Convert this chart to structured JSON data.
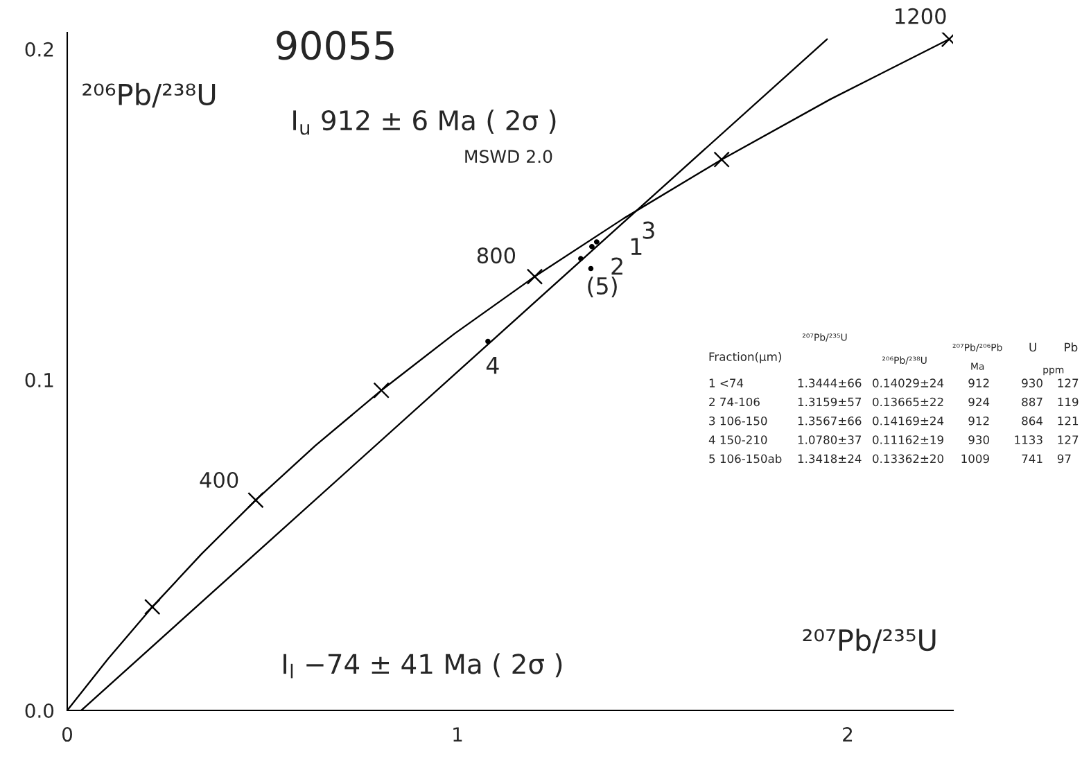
{
  "chart_data": [
    {
      "type": "line",
      "title": "90055",
      "xlabel": "²⁰⁷Pb/²³⁵U",
      "ylabel": "²⁰⁶Pb/²³⁸U",
      "xlim": [
        0,
        2.27
      ],
      "ylim": [
        0,
        0.205
      ],
      "xticks": [
        0,
        1,
        2
      ],
      "yticks": [
        {
          "value": 0,
          "label": "0.0"
        },
        0.1,
        0.2
      ],
      "series": [
        {
          "type": "line",
          "color": "#000000",
          "x": [
            0,
            0.104,
            0.218,
            0.344,
            0.483,
            0.636,
            0.805,
            0.992,
            1.198,
            1.426,
            1.677,
            1.955,
            2.26
          ],
          "values": [
            0,
            0.0155,
            0.0313,
            0.0473,
            0.0636,
            0.0801,
            0.0968,
            0.1139,
            0.1312,
            0.1488,
            0.1666,
            0.1848,
            0.203
          ]
        },
        {
          "type": "scatter",
          "color": "#000000",
          "marker": "cross",
          "x": [
            0.218,
            0.483,
            0.805,
            1.198,
            1.677,
            2.26
          ],
          "values": [
            0.0313,
            0.0636,
            0.0968,
            0.1312,
            0.1666,
            0.203
          ]
        },
        {
          "type": "line",
          "color": "#000000",
          "x": [
            0.036,
            1.947
          ],
          "values": [
            0,
            0.203
          ]
        },
        {
          "type": "scatter",
          "color": "#000000",
          "marker": "circle",
          "x": [
            1.3444,
            1.3159,
            1.3567,
            1.078,
            1.3418
          ],
          "values": [
            0.14029,
            0.13665,
            0.14169,
            0.11162,
            0.13362
          ],
          "xerrors": [
            0.0066,
            0.0057,
            0.0066,
            0.0037,
            0.0024
          ],
          "errors": [
            0.00024,
            0.00022,
            0.00024,
            0.00019,
            0.0002
          ]
        }
      ],
      "annotations": [
        {
          "text": "400",
          "x": 0.483,
          "y": 0.0636
        },
        {
          "text": "800",
          "x": 1.198,
          "y": 0.1312
        },
        {
          "text": "1200",
          "x": 2.26,
          "y": 0.203
        },
        {
          "text": "1",
          "x": 1.3444,
          "y": 0.14029
        },
        {
          "text": "2",
          "x": 1.3159,
          "y": 0.13665
        },
        {
          "text": "3",
          "x": 1.3567,
          "y": 0.14169
        },
        {
          "text": "4",
          "x": 1.078,
          "y": 0.11162
        },
        {
          "text": "(5)",
          "x": 1.3418,
          "y": 0.13362
        },
        "I$_{u}$ 912 ± 6 Ma ( 2σ )",
        "MSWD 2.0",
        "I$_{l}$ −74 ± 41 Ma ( 2σ )"
      ]
    },
    {
      "type": "other",
      "annotations": [
        "²⁰⁷Pb/²³⁵U",
        "²⁰⁷Pb/²⁰⁶Pb",
        "U",
        "Pb",
        "Fraction(μm)",
        "²⁰⁶Pb/²³⁸U",
        "Ma",
        "ppm",
        "1 <74",
        "1.3444±66",
        "0.14029±24",
        "912",
        "930",
        "127",
        "2 74-106",
        "1.3159±57",
        "0.13665±22",
        "924",
        "887",
        "119",
        "3 106-150",
        "1.3567±66",
        "0.14169±24",
        "912",
        "864",
        "121",
        "4 150-210",
        "1.0780±37",
        "0.11162±19",
        "930",
        "1133",
        "127",
        "5 106-150ab",
        "1.3418±24",
        "0.13362±20",
        "1009",
        "741",
        "97"
      ]
    }
  ]
}
